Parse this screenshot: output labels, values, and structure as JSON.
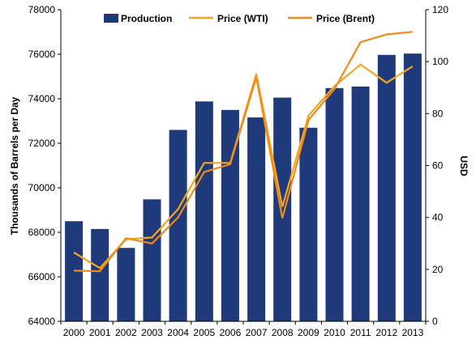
{
  "chart_data": {
    "type": "bar",
    "categories": [
      "2000",
      "2001",
      "2002",
      "2003",
      "2004",
      "2005",
      "2006",
      "2007",
      "2008",
      "2009",
      "2010",
      "2011",
      "2012",
      "2013"
    ],
    "series": [
      {
        "name": "Production",
        "kind": "bar",
        "axis": "left",
        "color": "#1F3A7A",
        "values": [
          68500,
          68150,
          67300,
          69480,
          72600,
          73880,
          73500,
          73160,
          74050,
          72700,
          74480,
          74550,
          75970,
          76030
        ]
      },
      {
        "name": "Price (WTI)",
        "kind": "line",
        "axis": "right",
        "color": "#F5A623",
        "values": [
          26.5,
          20.5,
          31.6,
          32.3,
          43.2,
          61.0,
          61.0,
          95.3,
          44.1,
          79.2,
          90.6,
          98.9,
          91.9,
          98.2
        ]
      },
      {
        "name": "Price (Brent)",
        "kind": "line",
        "axis": "right",
        "color": "#F08A1C",
        "values": [
          19.5,
          19.3,
          32.0,
          30.0,
          40.0,
          57.5,
          60.5,
          94.0,
          39.7,
          77.5,
          89.5,
          107.5,
          110.5,
          111.5
        ]
      }
    ],
    "ylabel": "Thousands of Barrels per Day",
    "y2label": "USD",
    "ylim": [
      64000,
      78000
    ],
    "y2lim": [
      0,
      120
    ],
    "yticks": [
      "64000",
      "66000",
      "68000",
      "70000",
      "72000",
      "74000",
      "76000",
      "78000"
    ],
    "y2ticks": [
      "0",
      "20",
      "40",
      "60",
      "80",
      "100",
      "120"
    ],
    "grid": false,
    "legend_position": "top"
  }
}
